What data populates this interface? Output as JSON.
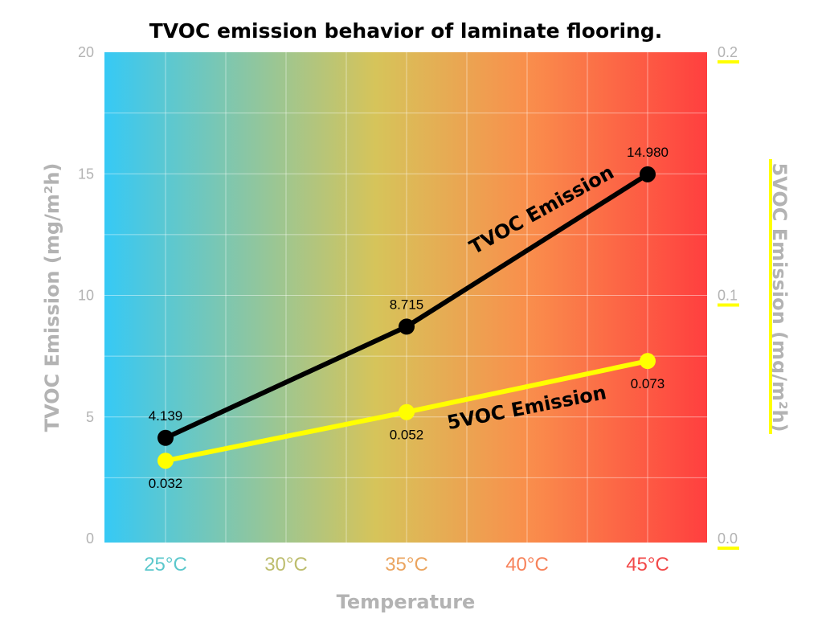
{
  "chart_data": {
    "type": "line",
    "title": "TVOC emission behavior of laminate flooring.",
    "xlabel": "Temperature",
    "ylabel": "TVOC Emission (mg/m²h)",
    "y2label": "5VOC Emission (mg/m²h)",
    "categories": [
      "25°C",
      "30°C",
      "35°C",
      "40°C",
      "45°C"
    ],
    "category_colors": [
      "#5cc8cc",
      "#bdbd6e",
      "#eba560",
      "#f7825a",
      "#f24a4a"
    ],
    "ylim": [
      0,
      20
    ],
    "y2lim": [
      0,
      0.2
    ],
    "y_ticks": [
      "0",
      "5",
      "10",
      "15",
      "20"
    ],
    "y2_ticks": [
      "0.0",
      "0.1",
      "0.2"
    ],
    "series": [
      {
        "name": "TVOC Emission",
        "axis": "left",
        "color": "#000000",
        "x": [
          "25°C",
          "35°C",
          "45°C"
        ],
        "values": [
          4.139,
          8.715,
          14.98
        ],
        "labels": [
          "4.139",
          "8.715",
          "14.980"
        ]
      },
      {
        "name": "5VOC Emission",
        "axis": "right",
        "color": "#ffff00",
        "x": [
          "25°C",
          "35°C",
          "45°C"
        ],
        "values": [
          0.032,
          0.052,
          0.073
        ],
        "labels": [
          "0.032",
          "0.052",
          "0.073"
        ]
      }
    ],
    "background_gradient": [
      "#36c9f5",
      "#d6c45a",
      "#f98f4c",
      "#ff3f3f"
    ],
    "grid": true
  }
}
